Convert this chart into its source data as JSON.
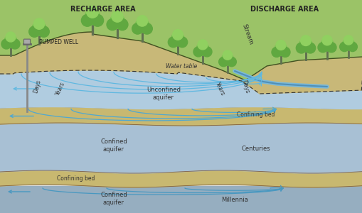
{
  "bg_color": "#e8e8e8",
  "title_recharge": "RECHARGE AREA",
  "title_discharge": "DISCHARGE AREA",
  "stream_label": "Stream",
  "pumped_well_label": "PUMPED WELL",
  "water_table_label": "Water table",
  "unconfined_color": "#b8d4e8",
  "confined1_color": "#aabfd8",
  "confined2_color": "#9ab0c8",
  "confining_color": "#d4c090",
  "surface_green": "#7ab848",
  "surface_dark_green": "#4a9828",
  "sandy_color": "#c8b878",
  "flow_color": "#60b8e0",
  "text_color": "#333333",
  "title_color": "#222222"
}
